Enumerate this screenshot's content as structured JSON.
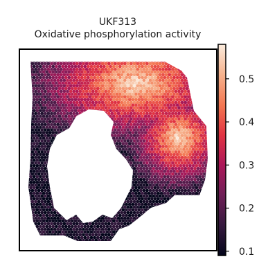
{
  "chart_data": {
    "type": "heatmap",
    "title": "UKF313",
    "subtitle": "Oxidative phosphorylation activity",
    "xlabel": "",
    "ylabel": "",
    "grid": false,
    "axes_ticks": false,
    "colormap": "rocket",
    "colormap_stops": [
      "#03051a",
      "#35193e",
      "#701f57",
      "#ad1759",
      "#e13342",
      "#f37651",
      "#f6b48f",
      "#faebdd"
    ],
    "colorbar": {
      "vmin": 0.09,
      "vmax": 0.58,
      "ticks": [
        0.1,
        0.2,
        0.3,
        0.4,
        0.5
      ],
      "tick_labels": [
        "0.1",
        "0.2",
        "0.3",
        "0.4",
        "0.5"
      ]
    },
    "value_gradient": {
      "description_values": "spot activity peaks at the upper-right band and declines toward the lower-left",
      "max_value": 0.56,
      "min_value": 0.12
    }
  }
}
